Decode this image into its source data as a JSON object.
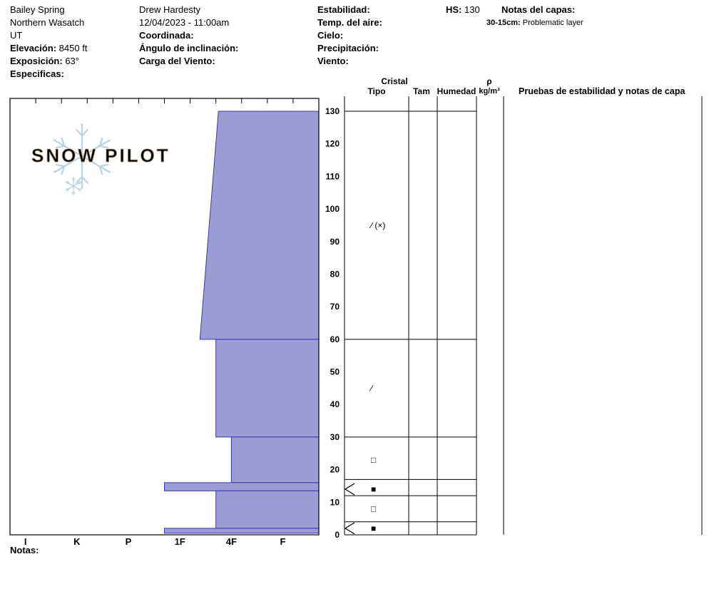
{
  "header": {
    "site": {
      "name": "Bailey Spring",
      "range": "Northern Wasatch",
      "state": "UT",
      "elevation_label": "Elevación:",
      "elevation_value": "8450 ft",
      "aspect_label": "Exposición:",
      "aspect_value": "63°",
      "specifics_label": "Especificas:"
    },
    "observer": {
      "name": "Drew Hardesty",
      "datetime": "12/04/2023 - 11:00am",
      "coordinates_label": "Coordinada:",
      "slope_angle_label": "Ángulo de inclinación:",
      "wind_loading_label": "Carga del Viento:"
    },
    "conditions": {
      "stability_label": "Estabilidad:",
      "air_temp_label": "Temp. del aire:",
      "sky_label": "Cielo:",
      "precip_label": "Precipitación:",
      "wind_label": "Viento:"
    },
    "hs_label": "HS:",
    "hs_value": "130",
    "layer_notes_label": "Notas del capas:",
    "layer_note_depth": "30-15cm:",
    "layer_note_text": "Problematic layer"
  },
  "logo": {
    "text": "SNOW PILOT"
  },
  "chart_data": {
    "type": "bar",
    "orientation": "horizontal",
    "title": "",
    "hardness_axis": {
      "categories": [
        "I",
        "K",
        "P",
        "1F",
        "4F",
        "F"
      ],
      "direction": "harder-to-left"
    },
    "depth_axis": {
      "min": 0,
      "max": 130,
      "tick_step": 10,
      "unit": "cm",
      "tick_labels": [
        "130",
        "120",
        "110",
        "100",
        "90",
        "80",
        "70",
        "60",
        "50",
        "40",
        "30",
        "20",
        "10",
        "0"
      ]
    },
    "layers": [
      {
        "top_cm": 130,
        "bottom_cm": 60,
        "hardness_top": 4.05,
        "hardness_bottom": 3.69
      },
      {
        "top_cm": 60,
        "bottom_cm": 30,
        "hardness_top": 4.0,
        "hardness_bottom": 4.0
      },
      {
        "top_cm": 30,
        "bottom_cm": 16,
        "hardness_top": 4.3,
        "hardness_bottom": 4.3
      },
      {
        "top_cm": 16,
        "bottom_cm": 13.5,
        "hardness_top": 3.0,
        "hardness_bottom": 3.0
      },
      {
        "top_cm": 13.5,
        "bottom_cm": 2,
        "hardness_top": 4.0,
        "hardness_bottom": 4.0
      },
      {
        "top_cm": 2,
        "bottom_cm": 0.5,
        "hardness_top": 3.0,
        "hardness_bottom": 3.0
      }
    ],
    "layer_boundaries_cm": [
      130,
      60,
      30,
      17,
      12,
      4,
      0
    ],
    "grain_symbols": [
      {
        "depth_cm": 95,
        "symbol": "∕ (×)"
      },
      {
        "depth_cm": 45,
        "symbol": "∕"
      },
      {
        "depth_cm": 23,
        "symbol": "□"
      },
      {
        "depth_cm": 14,
        "symbol": "■"
      },
      {
        "depth_cm": 8,
        "symbol": "□"
      },
      {
        "depth_cm": 2,
        "symbol": "■"
      }
    ],
    "concern_flags_cm": [
      14,
      2
    ],
    "colors": {
      "layer_fill": "#9c9cd4",
      "layer_stroke": "#3939b8",
      "logo_flake": "#b9d3e6",
      "logo_text_fill": "#dcc9a9",
      "logo_text_stroke": "#bda47e"
    }
  },
  "table": {
    "col_cristal": "Cristal",
    "col_tipo": "Tipo",
    "col_tam": "Tam",
    "col_humedad": "Humedad",
    "col_rho": "ρ",
    "col_rho_unit": "kg/m³",
    "col_tests": "Pruebas de estabilidad y notas de capa"
  },
  "footer": {
    "notes_label": "Notas:"
  }
}
